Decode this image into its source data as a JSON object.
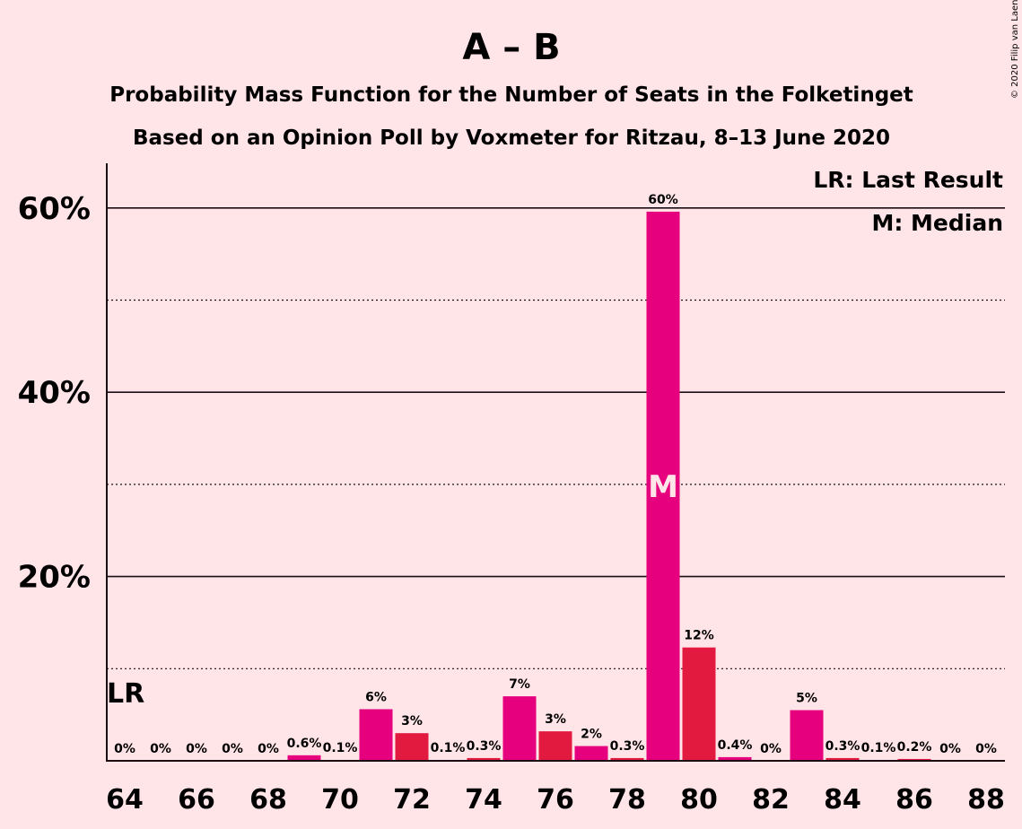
{
  "chart_data": {
    "type": "bar",
    "title": "A – B",
    "subtitle_1": "Probability Mass Function for the Number of Seats in the Folketinget",
    "subtitle_2": "Based on an Opinion Poll by Voxmeter for Ritzau, 8–13 June 2020",
    "xlabel": "",
    "ylabel": "",
    "x": [
      64,
      65,
      66,
      67,
      68,
      69,
      70,
      71,
      72,
      73,
      74,
      75,
      76,
      77,
      78,
      79,
      80,
      81,
      82,
      83,
      84,
      85,
      86,
      87,
      88
    ],
    "values": [
      0,
      0,
      0,
      0,
      0,
      0.6,
      0.1,
      5.6,
      3.0,
      0.1,
      0.3,
      7.0,
      3.2,
      1.6,
      0.3,
      59.6,
      12.3,
      0.4,
      0,
      5.5,
      0.3,
      0.1,
      0.2,
      0,
      0
    ],
    "value_labels": [
      "0%",
      "0%",
      "0%",
      "0%",
      "0%",
      "0.6%",
      "0.1%",
      "6%",
      "3%",
      "0.1%",
      "0.3%",
      "7%",
      "3%",
      "2%",
      "0.3%",
      "60%",
      "12%",
      "0.4%",
      "0%",
      "5%",
      "0.3%",
      "0.1%",
      "0.2%",
      "0%",
      "0%"
    ],
    "bar_colors": [
      "#e6007e",
      "#e31a40",
      "#e6007e",
      "#e31a40",
      "#e6007e",
      "#e6007e",
      "#e31a40",
      "#e6007e",
      "#e31a40",
      "#e6007e",
      "#e31a40",
      "#e6007e",
      "#e31a40",
      "#e6007e",
      "#e31a40",
      "#e6007e",
      "#e31a40",
      "#e6007e",
      "#e31a40",
      "#e6007e",
      "#e31a40",
      "#e6007e",
      "#e31a40",
      "#e6007e",
      "#e31a40"
    ],
    "ylim": [
      0,
      65
    ],
    "yticks": [
      20,
      40,
      60
    ],
    "ytick_labels": [
      "20%",
      "40%",
      "60%"
    ],
    "dotted_gridlines": [
      10,
      30,
      50
    ],
    "xticks": [
      64,
      66,
      68,
      70,
      72,
      74,
      76,
      78,
      80,
      82,
      84,
      86,
      88
    ],
    "xtick_labels": [
      "64",
      "66",
      "68",
      "70",
      "72",
      "74",
      "76",
      "78",
      "80",
      "82",
      "84",
      "86",
      "88"
    ],
    "last_result_seat": 64,
    "last_result_label": "LR",
    "median_seat": 79,
    "median_label": "M",
    "legend": [
      "LR: Last Result",
      "M: Median"
    ],
    "legend_position": "top-right",
    "grid": true
  },
  "copyright": "© 2020 Filip van Laenen"
}
